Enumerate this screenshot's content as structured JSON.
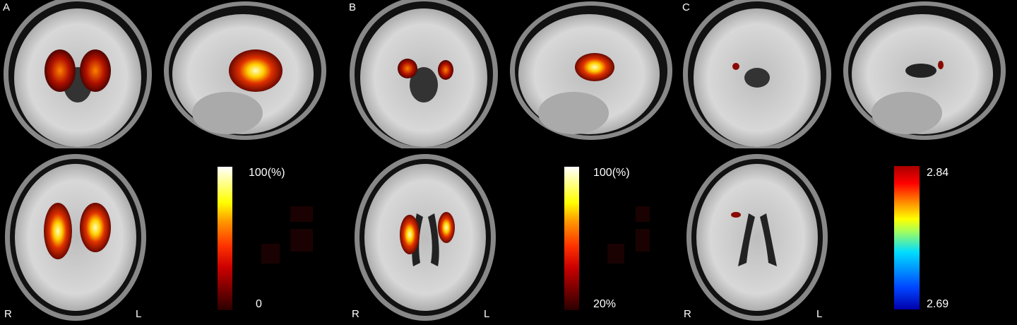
{
  "panels": [
    {
      "label": "A",
      "colorbar": {
        "max_label": "100(%)",
        "min_label": "0",
        "colormap": "hot",
        "colors": [
          "#2a0000",
          "#cc0000",
          "#ff3300",
          "#ff9900",
          "#ffff00",
          "#ffffff"
        ]
      },
      "orientation": {
        "right": "R",
        "left": "L"
      }
    },
    {
      "label": "B",
      "colorbar": {
        "max_label": "100(%)",
        "min_label": "20%",
        "colormap": "hot",
        "colors": [
          "#2a0000",
          "#cc0000",
          "#ff3300",
          "#ff9900",
          "#ffff00",
          "#ffffff"
        ]
      },
      "orientation": {
        "right": "R",
        "left": "L"
      }
    },
    {
      "label": "C",
      "colorbar": {
        "max_label": "2.84",
        "min_label": "2.69",
        "colormap": "jet",
        "colors": [
          "#0000aa",
          "#0044ff",
          "#00ddff",
          "#aaff55",
          "#ffff00",
          "#ff8800",
          "#ff0000",
          "#aa0000"
        ]
      },
      "orientation": {
        "right": "R",
        "left": "L"
      }
    }
  ]
}
